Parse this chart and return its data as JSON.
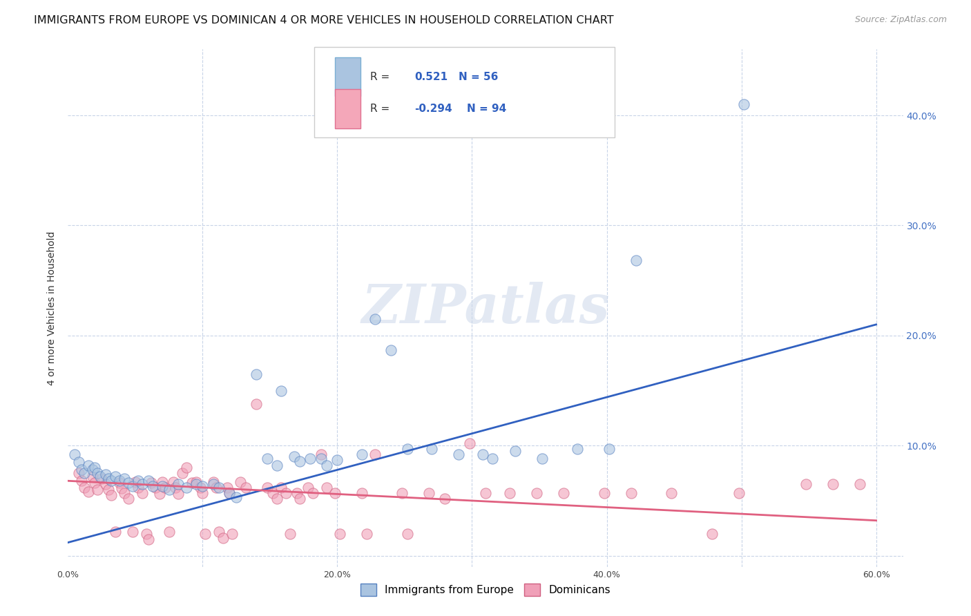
{
  "title": "IMMIGRANTS FROM EUROPE VS DOMINICAN 4 OR MORE VEHICLES IN HOUSEHOLD CORRELATION CHART",
  "source": "Source: ZipAtlas.com",
  "ylabel": "4 or more Vehicles in Household",
  "xlim": [
    0.0,
    0.62
  ],
  "ylim": [
    -0.01,
    0.46
  ],
  "xticks": [
    0.0,
    0.1,
    0.2,
    0.3,
    0.4,
    0.5,
    0.6
  ],
  "xtick_labels": [
    "0.0%",
    "",
    "20.0%",
    "",
    "40.0%",
    "",
    "60.0%"
  ],
  "yticks": [
    0.0,
    0.1,
    0.2,
    0.3,
    0.4
  ],
  "ytick_labels_right": [
    "",
    "10.0%",
    "20.0%",
    "30.0%",
    "40.0%"
  ],
  "europe_color": "#aac4e0",
  "europe_edge_color": "#5580c0",
  "dominican_color": "#f0a0b8",
  "dominican_edge_color": "#d06080",
  "europe_line_color": "#3060c0",
  "dominican_line_color": "#e06080",
  "europe_scatter": [
    [
      0.005,
      0.092
    ],
    [
      0.008,
      0.085
    ],
    [
      0.01,
      0.078
    ],
    [
      0.012,
      0.075
    ],
    [
      0.015,
      0.082
    ],
    [
      0.018,
      0.078
    ],
    [
      0.02,
      0.08
    ],
    [
      0.022,
      0.075
    ],
    [
      0.024,
      0.072
    ],
    [
      0.028,
      0.074
    ],
    [
      0.03,
      0.07
    ],
    [
      0.032,
      0.068
    ],
    [
      0.035,
      0.072
    ],
    [
      0.038,
      0.068
    ],
    [
      0.042,
      0.07
    ],
    [
      0.045,
      0.066
    ],
    [
      0.048,
      0.063
    ],
    [
      0.052,
      0.068
    ],
    [
      0.055,
      0.065
    ],
    [
      0.06,
      0.068
    ],
    [
      0.063,
      0.063
    ],
    [
      0.07,
      0.063
    ],
    [
      0.075,
      0.06
    ],
    [
      0.082,
      0.065
    ],
    [
      0.088,
      0.062
    ],
    [
      0.095,
      0.065
    ],
    [
      0.1,
      0.063
    ],
    [
      0.108,
      0.065
    ],
    [
      0.112,
      0.062
    ],
    [
      0.12,
      0.057
    ],
    [
      0.125,
      0.053
    ],
    [
      0.14,
      0.165
    ],
    [
      0.148,
      0.088
    ],
    [
      0.155,
      0.082
    ],
    [
      0.158,
      0.15
    ],
    [
      0.168,
      0.09
    ],
    [
      0.172,
      0.086
    ],
    [
      0.18,
      0.088
    ],
    [
      0.188,
      0.088
    ],
    [
      0.192,
      0.082
    ],
    [
      0.2,
      0.087
    ],
    [
      0.218,
      0.092
    ],
    [
      0.228,
      0.215
    ],
    [
      0.24,
      0.187
    ],
    [
      0.252,
      0.097
    ],
    [
      0.27,
      0.097
    ],
    [
      0.29,
      0.092
    ],
    [
      0.308,
      0.092
    ],
    [
      0.315,
      0.088
    ],
    [
      0.332,
      0.095
    ],
    [
      0.352,
      0.088
    ],
    [
      0.378,
      0.097
    ],
    [
      0.402,
      0.097
    ],
    [
      0.422,
      0.268
    ],
    [
      0.502,
      0.41
    ]
  ],
  "dominican_scatter": [
    [
      0.008,
      0.075
    ],
    [
      0.01,
      0.068
    ],
    [
      0.012,
      0.062
    ],
    [
      0.015,
      0.058
    ],
    [
      0.018,
      0.072
    ],
    [
      0.02,
      0.066
    ],
    [
      0.022,
      0.06
    ],
    [
      0.025,
      0.07
    ],
    [
      0.028,
      0.065
    ],
    [
      0.03,
      0.06
    ],
    [
      0.032,
      0.055
    ],
    [
      0.035,
      0.022
    ],
    [
      0.038,
      0.066
    ],
    [
      0.04,
      0.061
    ],
    [
      0.042,
      0.057
    ],
    [
      0.045,
      0.052
    ],
    [
      0.048,
      0.022
    ],
    [
      0.05,
      0.067
    ],
    [
      0.052,
      0.062
    ],
    [
      0.055,
      0.057
    ],
    [
      0.058,
      0.02
    ],
    [
      0.06,
      0.015
    ],
    [
      0.062,
      0.066
    ],
    [
      0.065,
      0.062
    ],
    [
      0.068,
      0.056
    ],
    [
      0.07,
      0.067
    ],
    [
      0.072,
      0.062
    ],
    [
      0.075,
      0.022
    ],
    [
      0.078,
      0.067
    ],
    [
      0.08,
      0.062
    ],
    [
      0.082,
      0.056
    ],
    [
      0.085,
      0.075
    ],
    [
      0.088,
      0.08
    ],
    [
      0.092,
      0.066
    ],
    [
      0.095,
      0.067
    ],
    [
      0.098,
      0.062
    ],
    [
      0.1,
      0.057
    ],
    [
      0.102,
      0.02
    ],
    [
      0.108,
      0.067
    ],
    [
      0.11,
      0.062
    ],
    [
      0.112,
      0.022
    ],
    [
      0.115,
      0.016
    ],
    [
      0.118,
      0.062
    ],
    [
      0.12,
      0.057
    ],
    [
      0.122,
      0.02
    ],
    [
      0.128,
      0.067
    ],
    [
      0.132,
      0.062
    ],
    [
      0.14,
      0.138
    ],
    [
      0.148,
      0.062
    ],
    [
      0.152,
      0.057
    ],
    [
      0.155,
      0.052
    ],
    [
      0.158,
      0.062
    ],
    [
      0.162,
      0.057
    ],
    [
      0.165,
      0.02
    ],
    [
      0.17,
      0.057
    ],
    [
      0.172,
      0.052
    ],
    [
      0.178,
      0.062
    ],
    [
      0.182,
      0.057
    ],
    [
      0.188,
      0.092
    ],
    [
      0.192,
      0.062
    ],
    [
      0.198,
      0.057
    ],
    [
      0.202,
      0.02
    ],
    [
      0.218,
      0.057
    ],
    [
      0.222,
      0.02
    ],
    [
      0.228,
      0.092
    ],
    [
      0.248,
      0.057
    ],
    [
      0.252,
      0.02
    ],
    [
      0.268,
      0.057
    ],
    [
      0.28,
      0.052
    ],
    [
      0.298,
      0.102
    ],
    [
      0.31,
      0.057
    ],
    [
      0.328,
      0.057
    ],
    [
      0.348,
      0.057
    ],
    [
      0.368,
      0.057
    ],
    [
      0.398,
      0.057
    ],
    [
      0.418,
      0.057
    ],
    [
      0.448,
      0.057
    ],
    [
      0.478,
      0.02
    ],
    [
      0.498,
      0.057
    ],
    [
      0.548,
      0.065
    ],
    [
      0.568,
      0.065
    ],
    [
      0.588,
      0.065
    ]
  ],
  "europe_line": {
    "x0": 0.0,
    "y0": 0.012,
    "x1": 0.6,
    "y1": 0.21
  },
  "dominican_line": {
    "x0": 0.0,
    "y0": 0.068,
    "x1": 0.6,
    "y1": 0.032
  },
  "watermark": "ZIPatlas",
  "background_color": "#ffffff",
  "grid_color": "#c8d4e8",
  "title_fontsize": 11.5,
  "axis_label_fontsize": 10,
  "tick_label_color": "#4472c4",
  "scatter_size": 120,
  "scatter_alpha": 0.6
}
